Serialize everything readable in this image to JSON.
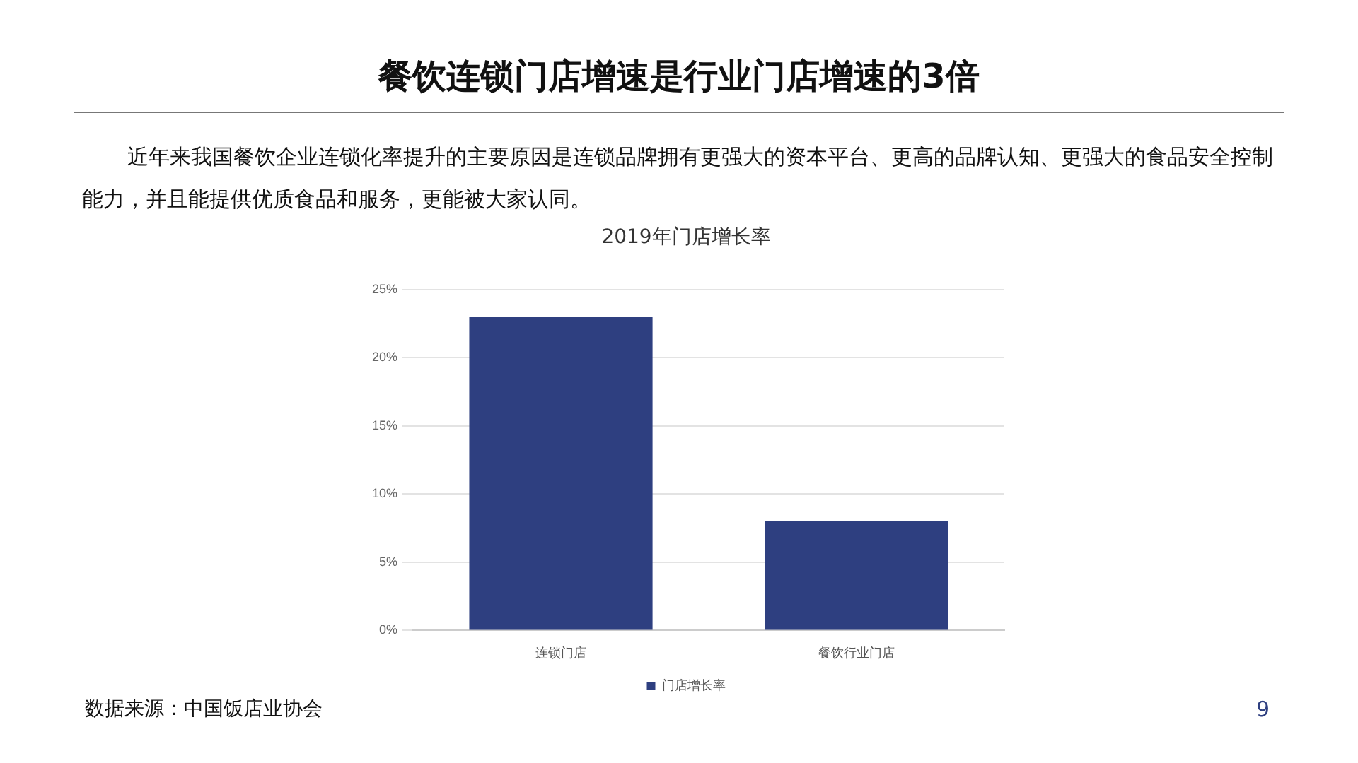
{
  "chart_data": {
    "type": "bar",
    "title": "餐饮连锁门店增速是行业门店增速的3倍",
    "subtitle": "2019年门店增长率",
    "categories": [
      "连锁门店",
      "餐饮行业门店"
    ],
    "series": [
      {
        "name": "门店增长率",
        "color": "#2e3f80",
        "values": [
          23,
          8
        ]
      }
    ],
    "ylim": [
      0,
      25
    ],
    "yticks": [
      {
        "value": 0,
        "label": "0%"
      },
      {
        "value": 5,
        "label": "5%"
      },
      {
        "value": 10,
        "label": "10%"
      },
      {
        "value": 15,
        "label": "15%"
      },
      {
        "value": 20,
        "label": "20%"
      },
      {
        "value": 25,
        "label": "25%"
      }
    ],
    "grid": "y",
    "legend": "bottom",
    "annotations": [
      "近年来我国餐饮企业连锁化率提升的主要原因是连锁品牌拥有更强大的资本平台、更高的品牌认知、更强大的食品安全控制能力，并且能提供优质食品和服务，更能被大家认同。",
      "数据来源：中国饭店业协会",
      "9"
    ]
  }
}
